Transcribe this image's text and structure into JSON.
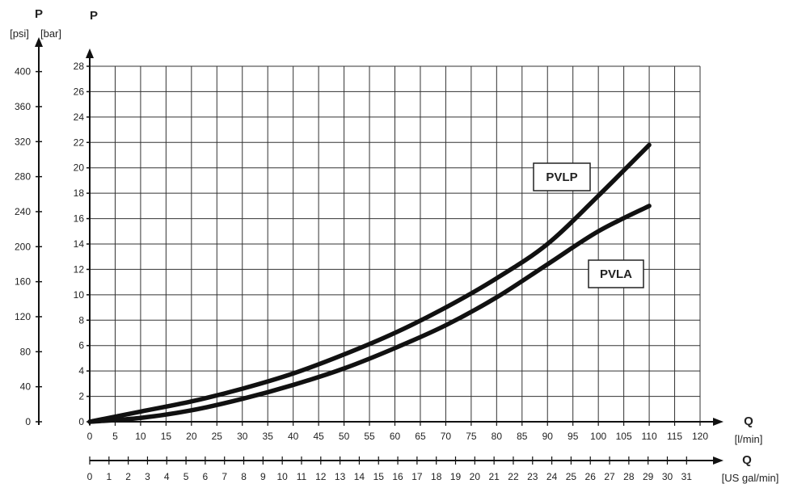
{
  "chart_data": {
    "type": "line",
    "y_axis_psi": {
      "symbol": "P",
      "unit": "[psi]",
      "ticks": [
        0,
        40,
        80,
        120,
        160,
        200,
        240,
        280,
        320,
        360,
        400
      ]
    },
    "y_axis_bar": {
      "symbol": "P",
      "unit": "[bar]",
      "ticks": [
        0,
        2,
        4,
        6,
        8,
        10,
        12,
        14,
        16,
        18,
        20,
        22,
        24,
        26,
        28
      ],
      "ylim": [
        0,
        28
      ]
    },
    "x_axis_lmin": {
      "symbol": "Q",
      "unit": "[l/min]",
      "ticks": [
        0,
        5,
        10,
        15,
        20,
        25,
        30,
        35,
        40,
        45,
        50,
        55,
        60,
        65,
        70,
        75,
        80,
        85,
        90,
        95,
        100,
        105,
        110,
        115,
        120
      ],
      "labeled": [
        0,
        5,
        10,
        15,
        20,
        25,
        30,
        35,
        40,
        45,
        50,
        55,
        60,
        65,
        70,
        75,
        80,
        85,
        90,
        95,
        100,
        105,
        110,
        115,
        120
      ],
      "xlim": [
        0,
        120
      ]
    },
    "x_axis_usgal": {
      "symbol": "Q",
      "unit": "[US gal/min]",
      "labeled": [
        0,
        1,
        2,
        3,
        4,
        5,
        6,
        7,
        8,
        9,
        10,
        11,
        12,
        13,
        14,
        15,
        16,
        17,
        18,
        19,
        20,
        21,
        22,
        23,
        24,
        25,
        26,
        27,
        28,
        29,
        30,
        31
      ]
    },
    "grid": true,
    "series": [
      {
        "name": "PVLP",
        "x": [
          0,
          10,
          20,
          30,
          40,
          50,
          60,
          70,
          80,
          90,
          100,
          110
        ],
        "y": [
          0,
          0.8,
          1.6,
          2.6,
          3.8,
          5.3,
          7.0,
          9.0,
          11.3,
          14.0,
          17.8,
          21.8
        ]
      },
      {
        "name": "PVLA",
        "x": [
          0,
          10,
          20,
          30,
          40,
          50,
          60,
          70,
          80,
          90,
          100,
          110
        ],
        "y": [
          0,
          0.3,
          0.9,
          1.8,
          2.9,
          4.2,
          5.8,
          7.6,
          9.8,
          12.4,
          15.0,
          17.0
        ]
      }
    ]
  }
}
